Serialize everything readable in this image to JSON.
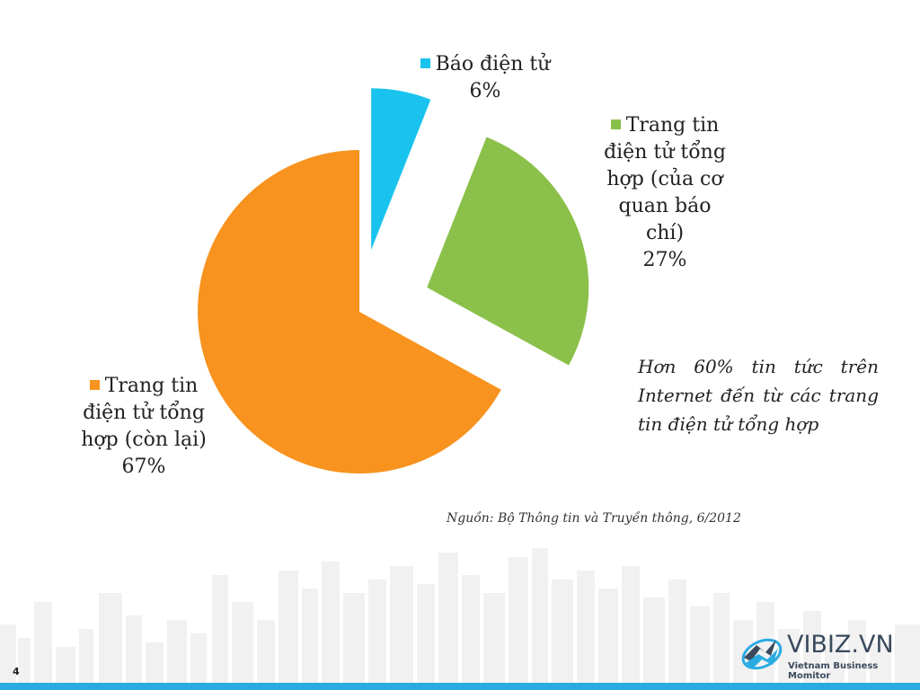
{
  "chart_data": {
    "type": "pie",
    "exploded": true,
    "slices": [
      {
        "label": "Báo điện tử",
        "value": 6,
        "value_label": "6%",
        "color": "#1ac3ee"
      },
      {
        "label": "Trang tin điện tử tổng hợp (của cơ quan báo chí)",
        "value": 27,
        "value_label": "27%",
        "color": "#8bc04a"
      },
      {
        "label": "Trang tin điện tử tổng hợp (còn lại)",
        "value": 67,
        "value_label": "67%",
        "color": "#f7931e"
      }
    ]
  },
  "labels": {
    "bao": {
      "lines": [
        "Báo điện tử"
      ],
      "value": "6%"
    },
    "tonghop_cqbc": {
      "lines": [
        "Trang tin",
        "điện tử tổng",
        "hợp (của cơ",
        "quan báo",
        "chí)"
      ],
      "value": "27%"
    },
    "tonghop_conlai": {
      "lines": [
        "Trang tin",
        "điện tử tổng",
        "hợp (còn lại)"
      ],
      "value": "67%"
    }
  },
  "annotation": "Hơn 60% tin tức trên Internet đến từ các trang tin điện tử tổng hợp",
  "source": "Nguồn: Bộ Thông tin và Truyền thông, 6/2012",
  "page_number": "4",
  "logo": {
    "name": "VIBIZ.VN",
    "tagline": "Vietnam Business Momitor",
    "icon": "vibiz-globe-icon"
  },
  "colors": {
    "accent_bar": "#29abe2",
    "skyline": "#f0f0f0"
  }
}
